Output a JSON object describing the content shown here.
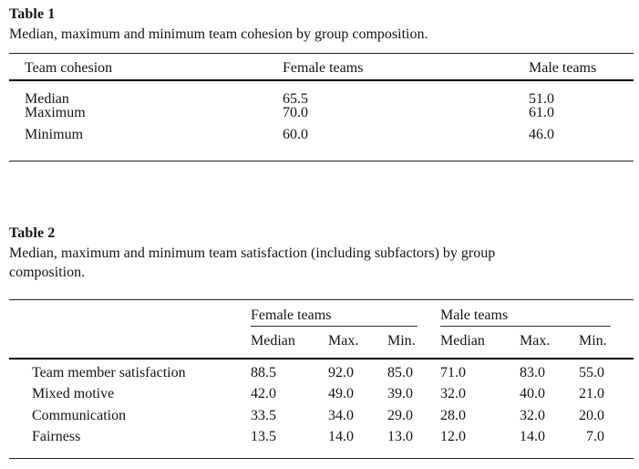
{
  "page": {
    "background": "#ffffff",
    "text_color": "#141414",
    "rule_color_major": "#000000",
    "rule_color_minor": "#333333"
  },
  "table1": {
    "title": "Table 1",
    "caption": "Median, maximum and minimum team cohesion by group composition.",
    "columns": [
      "Team cohesion",
      "Female teams",
      "Male teams"
    ],
    "rows": [
      {
        "label": "Median",
        "female": "65.5",
        "male": "51.0"
      },
      {
        "label": "Maximum",
        "female": "70.0",
        "male": "61.0"
      },
      {
        "label": "Minimum",
        "female": "60.0",
        "male": "46.0"
      }
    ]
  },
  "table2": {
    "title": "Table 2",
    "caption_line1": "Median, maximum and minimum team satisfaction (including subfactors) by group",
    "caption_line2": "composition.",
    "group_headers": [
      "Female teams",
      "Male teams"
    ],
    "sub_headers": [
      "Median",
      "Max.",
      "Min.",
      "Median",
      "Max.",
      "Min."
    ],
    "rows": [
      {
        "label": "Team member satisfaction",
        "values": [
          "88.5",
          "92.0",
          "85.0",
          "71.0",
          "83.0",
          "55.0"
        ]
      },
      {
        "label": "Mixed motive",
        "values": [
          "42.0",
          "49.0",
          "39.0",
          "32.0",
          "40.0",
          "21.0"
        ]
      },
      {
        "label": "Communication",
        "values": [
          "33.5",
          "34.0",
          "29.0",
          "28.0",
          "32.0",
          "20.0"
        ]
      },
      {
        "label": "Fairness",
        "values": [
          "13.5",
          "14.0",
          "13.0",
          "12.0",
          "14.0",
          " 7.0"
        ]
      }
    ]
  }
}
